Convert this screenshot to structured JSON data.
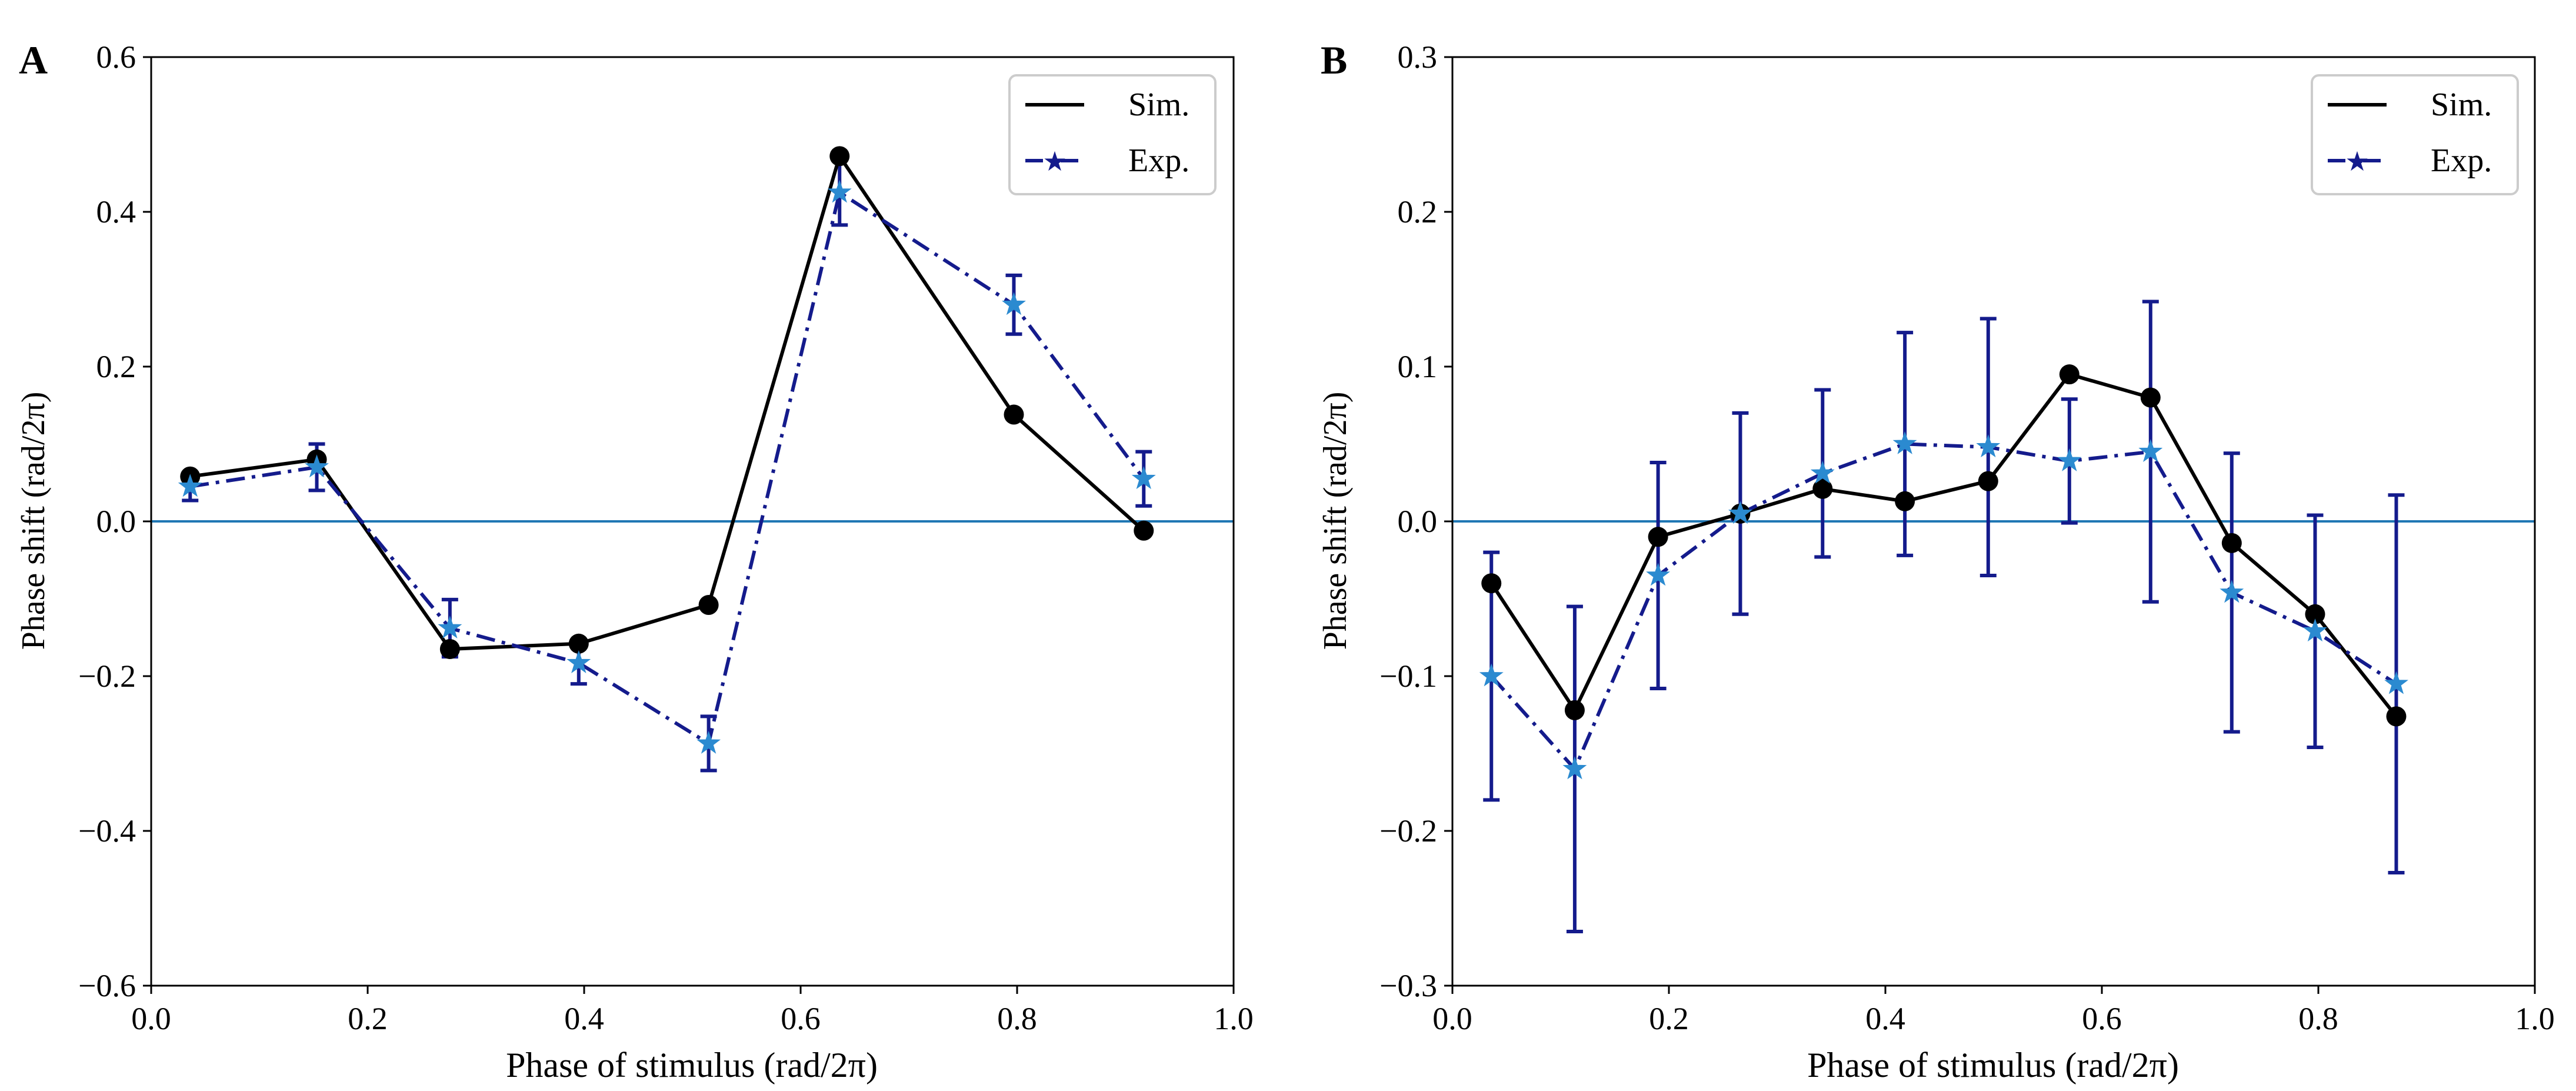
{
  "colors": {
    "sim": "#000000",
    "exp_line": "#141b8c",
    "exp_marker": "#2b8ad0",
    "zero_line": "#1f77b4",
    "error_bar": "#141b8c"
  },
  "chart_data": [
    {
      "type": "line",
      "panel_label": "A",
      "xlabel": "Phase of stimulus (rad/2π)",
      "ylabel": "Phase shift (rad/2π)",
      "xlim": [
        0.0,
        1.0
      ],
      "ylim": [
        -0.6,
        0.6
      ],
      "xticks": [
        0.0,
        0.2,
        0.4,
        0.6,
        0.8,
        1.0
      ],
      "xtick_labels": [
        "0.0",
        "0.2",
        "0.4",
        "0.6",
        "0.8",
        "1.0"
      ],
      "yticks": [
        -0.6,
        -0.4,
        -0.2,
        0.0,
        0.2,
        0.4,
        0.6
      ],
      "ytick_labels": [
        "−0.6",
        "−0.4",
        "−0.2",
        "0.0",
        "0.2",
        "0.4",
        "0.6"
      ],
      "zero_line": 0.0,
      "legend_position": "top-right",
      "series": [
        {
          "name": "Sim.",
          "style": "solid-circle",
          "x": [
            0.036,
            0.153,
            0.276,
            0.395,
            0.515,
            0.636,
            0.797,
            0.917
          ],
          "y": [
            0.058,
            0.08,
            -0.165,
            -0.158,
            -0.108,
            0.472,
            0.138,
            -0.012
          ]
        },
        {
          "name": "Exp.",
          "style": "dashdot-star-errorbar",
          "x": [
            0.036,
            0.153,
            0.276,
            0.395,
            0.515,
            0.636,
            0.797,
            0.917
          ],
          "y": [
            0.045,
            0.07,
            -0.138,
            -0.183,
            -0.287,
            0.425,
            0.28,
            0.055
          ],
          "err": [
            0.018,
            0.03,
            0.037,
            0.027,
            0.035,
            0.042,
            0.038,
            0.035
          ]
        }
      ]
    },
    {
      "type": "line",
      "panel_label": "B",
      "xlabel": "Phase of stimulus (rad/2π)",
      "ylabel": "Phase shift (rad/2π)",
      "xlim": [
        0.0,
        1.0
      ],
      "ylim": [
        -0.3,
        0.3
      ],
      "xticks": [
        0.0,
        0.2,
        0.4,
        0.6,
        0.8,
        1.0
      ],
      "xtick_labels": [
        "0.0",
        "0.2",
        "0.4",
        "0.6",
        "0.8",
        "1.0"
      ],
      "yticks": [
        -0.3,
        -0.2,
        -0.1,
        0.0,
        0.1,
        0.2,
        0.3
      ],
      "ytick_labels": [
        "−0.3",
        "−0.2",
        "−0.1",
        "0.0",
        "0.1",
        "0.2",
        "0.3"
      ],
      "zero_line": 0.0,
      "legend_position": "top-right",
      "series": [
        {
          "name": "Sim.",
          "style": "solid-circle",
          "x": [
            0.036,
            0.113,
            0.19,
            0.266,
            0.342,
            0.418,
            0.495,
            0.57,
            0.645,
            0.72,
            0.797,
            0.872
          ],
          "y": [
            -0.04,
            -0.122,
            -0.01,
            0.005,
            0.021,
            0.013,
            0.026,
            0.095,
            0.08,
            -0.014,
            -0.06,
            -0.126
          ]
        },
        {
          "name": "Exp.",
          "style": "dashdot-star-errorbar",
          "x": [
            0.036,
            0.113,
            0.19,
            0.266,
            0.342,
            0.418,
            0.495,
            0.57,
            0.645,
            0.72,
            0.797,
            0.872
          ],
          "y": [
            -0.1,
            -0.16,
            -0.035,
            0.005,
            0.031,
            0.05,
            0.048,
            0.039,
            0.045,
            -0.046,
            -0.071,
            -0.105
          ],
          "err": [
            0.08,
            0.105,
            0.073,
            0.065,
            0.054,
            0.072,
            0.083,
            0.04,
            0.097,
            0.09,
            0.075,
            0.122
          ]
        }
      ]
    }
  ]
}
